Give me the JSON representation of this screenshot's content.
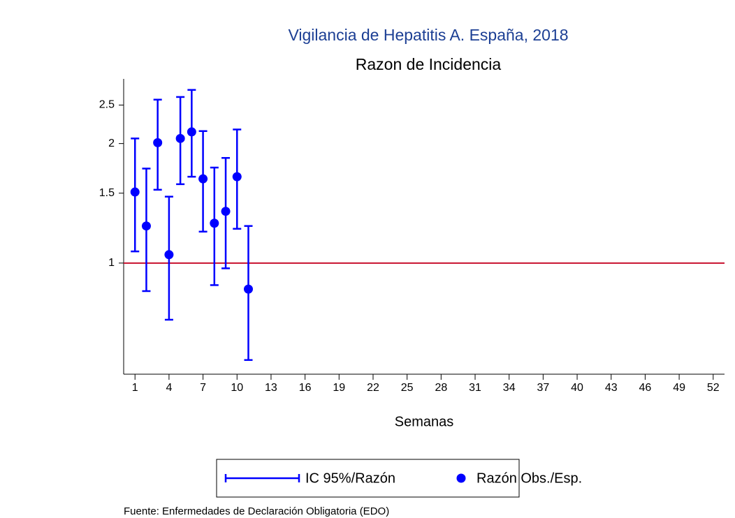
{
  "chart_data": {
    "type": "errorbar",
    "title": "Vigilancia de Hepatitis A. España, 2018",
    "subtitle": "Razon de Incidencia",
    "xlabel": "Semanas",
    "source": "Fuente: Enfermedades de Declaración Obligatoria (EDO)",
    "x": [
      1,
      2,
      3,
      4,
      5,
      6,
      7,
      8,
      9,
      10,
      11
    ],
    "series": [
      {
        "name": "Razón Obs./Esp.",
        "color": "#0000ff",
        "values": [
          1.51,
          1.24,
          2.01,
          1.05,
          2.06,
          2.14,
          1.63,
          1.26,
          1.35,
          1.65,
          0.86
        ]
      }
    ],
    "ci": {
      "name": "IC 95%/Razón",
      "color": "#0000ff",
      "lower": [
        1.07,
        0.85,
        1.53,
        0.72,
        1.58,
        1.65,
        1.2,
        0.88,
        0.97,
        1.22,
        0.57
      ],
      "upper": [
        2.06,
        1.73,
        2.58,
        1.47,
        2.62,
        2.73,
        2.15,
        1.74,
        1.84,
        2.17,
        1.24
      ]
    },
    "reference_line": {
      "value": 1,
      "color": "#c8102e"
    },
    "log_scale_y": true,
    "xlim": [
      0,
      53
    ],
    "xticks": [
      1,
      4,
      7,
      10,
      13,
      16,
      19,
      22,
      25,
      28,
      31,
      34,
      37,
      40,
      43,
      46,
      49,
      52
    ],
    "ylim": [
      0.525,
      2.91
    ],
    "yticks": [
      1,
      1.5,
      2,
      2.5
    ]
  }
}
